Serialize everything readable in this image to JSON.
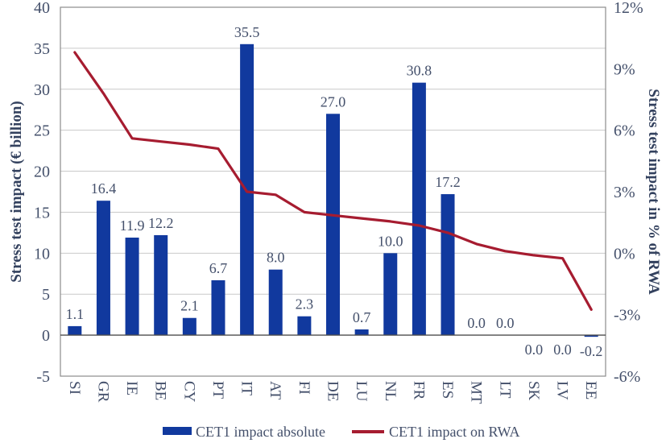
{
  "chart_data": {
    "type": "bar",
    "subtype": "bar-and-line-combo",
    "title": "",
    "categories": [
      "SI",
      "GR",
      "IE",
      "BE",
      "CY",
      "PT",
      "IT",
      "AT",
      "FI",
      "DE",
      "LU",
      "NL",
      "FR",
      "ES",
      "MT",
      "LT",
      "SK",
      "LV",
      "EE"
    ],
    "series": [
      {
        "name": "CET1 impact absolute",
        "type": "bar",
        "axis": "left",
        "unit": "€ billion",
        "values": [
          1.1,
          16.4,
          11.9,
          12.2,
          2.1,
          6.7,
          35.5,
          8.0,
          2.3,
          27.0,
          0.7,
          10.0,
          30.8,
          17.2,
          0.0,
          0.0,
          0.0,
          0.0,
          -0.2
        ],
        "labels": [
          "1.1",
          "16.4",
          "11.9",
          "12.2",
          "2.1",
          "6.7",
          "35.5",
          "8.0",
          "2.3",
          "27.0",
          "0.7",
          "10.0",
          "30.8",
          "17.2",
          "0.0",
          "0.0",
          "0.0",
          "0.0",
          "-0.2"
        ],
        "label_side": [
          "above",
          "above",
          "above",
          "above",
          "above",
          "above",
          "above",
          "above",
          "above",
          "above",
          "above",
          "above",
          "above",
          "above",
          "above",
          "above",
          "below",
          "below",
          "below"
        ]
      },
      {
        "name": "CET1 impact on RWA",
        "type": "line",
        "axis": "right",
        "unit": "% of RWA",
        "values": [
          9.8,
          7.8,
          5.6,
          5.45,
          5.3,
          5.1,
          3.0,
          2.85,
          2.0,
          1.85,
          1.7,
          1.55,
          1.35,
          1.0,
          0.45,
          0.1,
          -0.1,
          -0.25,
          -2.75
        ]
      }
    ],
    "left_axis": {
      "label": "Stress test impact (€ billion)",
      "min": -5,
      "max": 40,
      "tick_step": 5,
      "ticks": [
        "40",
        "35",
        "30",
        "25",
        "20",
        "15",
        "10",
        "5",
        "0",
        "-5"
      ],
      "tick_values": [
        40,
        35,
        30,
        25,
        20,
        15,
        10,
        5,
        0,
        -5
      ]
    },
    "right_axis": {
      "label": "Stress test impact in % of RWA",
      "min": -6,
      "max": 12,
      "tick_step": 3,
      "ticks": [
        "12%",
        "9%",
        "6%",
        "3%",
        "0%",
        "-3%",
        "-6%"
      ],
      "tick_values": [
        12,
        9,
        6,
        3,
        0,
        -3,
        -6
      ]
    },
    "legend": [
      {
        "label": "CET1 impact absolute",
        "swatch": "bar"
      },
      {
        "label": "CET1 impact on RWA",
        "swatch": "line"
      }
    ],
    "legend_position": "bottom",
    "grid": "horizontal",
    "colors": {
      "bar": "#11399E",
      "line": "#A61C30",
      "text": "#44506B",
      "title_text": "#33415E",
      "grid": "#C9C9C9",
      "border": "#8C8C8C",
      "zero_axis": "#4D4D4D",
      "background": "#FFFFFF"
    }
  }
}
